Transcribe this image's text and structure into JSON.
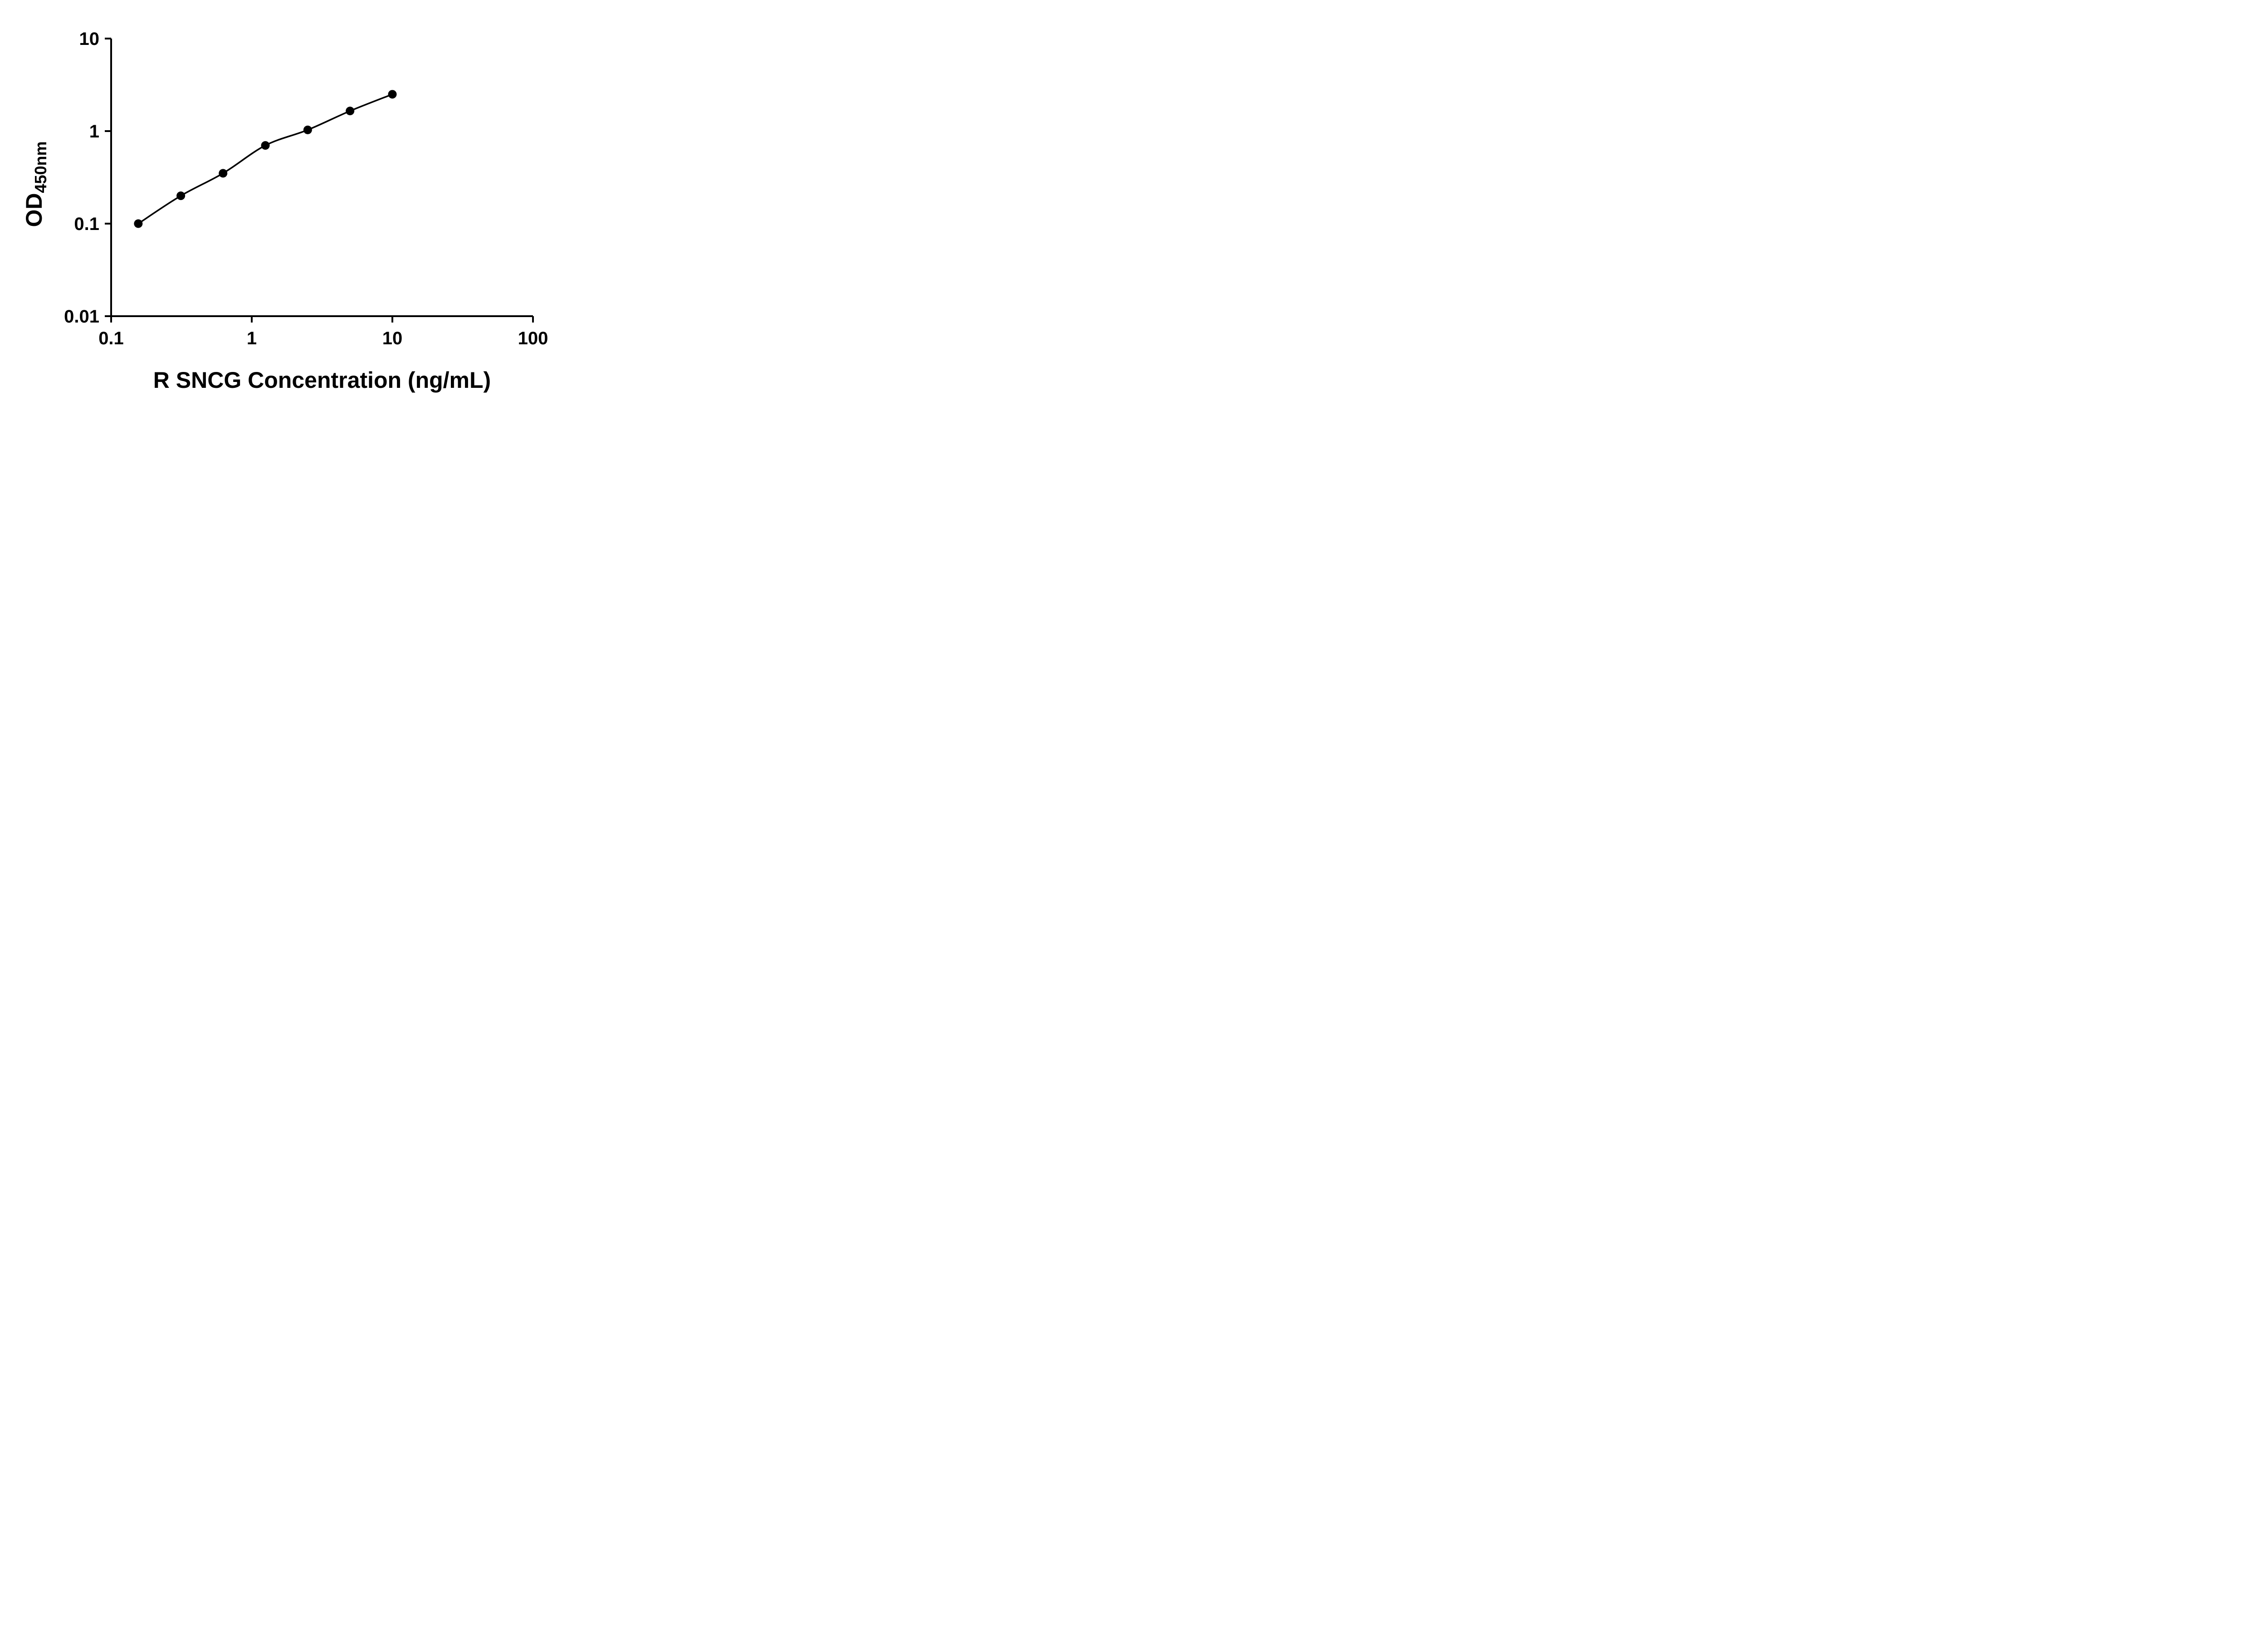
{
  "figure": {
    "background": "#ffffff",
    "axis_color": "#000000",
    "line_color": "#000000",
    "point_color": "#000000"
  },
  "chart_data": {
    "type": "scatter",
    "x": [
      0.156,
      0.313,
      0.625,
      1.25,
      2.5,
      5,
      10
    ],
    "y": [
      0.1,
      0.2,
      0.35,
      0.7,
      1.03,
      1.65,
      2.5
    ],
    "title": "",
    "xlabel": "R SNCG Concentration (ng/mL)",
    "ylabel_main": "OD",
    "ylabel_sub": "450nm",
    "x_scale": "log",
    "y_scale": "log",
    "xlim": [
      0.1,
      100
    ],
    "ylim": [
      0.01,
      10
    ],
    "x_ticks": [
      {
        "value": 0.1,
        "label": "0.1"
      },
      {
        "value": 1,
        "label": "1"
      },
      {
        "value": 10,
        "label": "10"
      },
      {
        "value": 100,
        "label": "100"
      }
    ],
    "y_ticks": [
      {
        "value": 0.01,
        "label": "0.01"
      },
      {
        "value": 0.1,
        "label": "0.1"
      },
      {
        "value": 1,
        "label": "1"
      },
      {
        "value": 10,
        "label": "10"
      }
    ],
    "grid": false,
    "legend": null,
    "curve": "smooth",
    "marker": "filled-circle"
  }
}
